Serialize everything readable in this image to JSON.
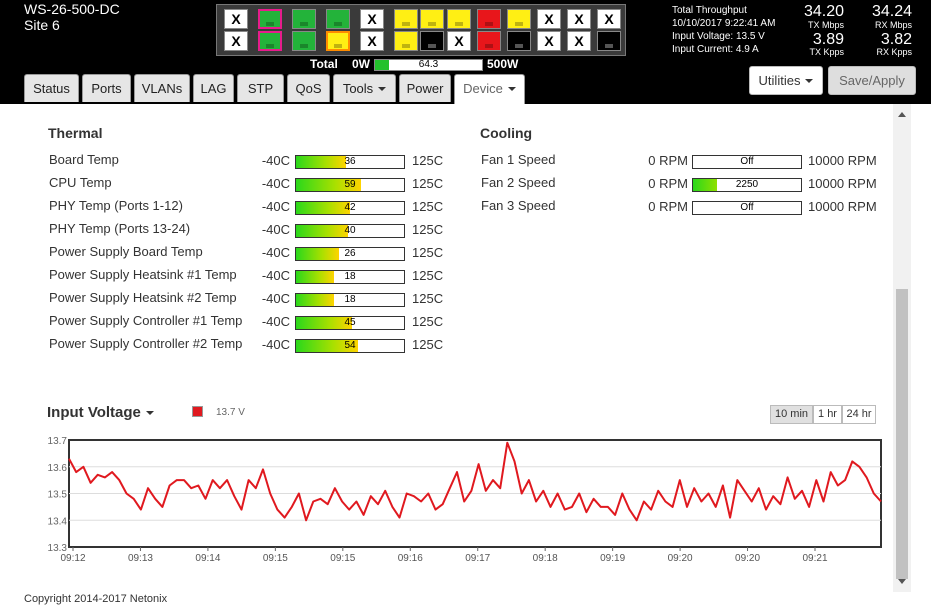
{
  "header": {
    "device_name": "WS-26-500-DC",
    "site_name": "Site 6",
    "total_label": "Total",
    "power_min": "0W",
    "power_max": "500W",
    "power_value": "64.3",
    "power_fraction": 0.129,
    "throughput_title": "Total Throughput",
    "datetime": "10/10/2017 9:22:41 AM",
    "input_voltage": "Input Voltage: 13.5 V",
    "input_current": "Input Current: 4.9 A",
    "tx_mbps": "34.20",
    "tx_mbps_label": "TX Mbps",
    "rx_mbps": "34.24",
    "rx_mbps_label": "RX Mbps",
    "tx_kpps": "3.89",
    "tx_kpps_label": "TX Kpps",
    "rx_kpps": "3.82",
    "rx_kpps_label": "RX Kpps"
  },
  "ports": {
    "top": [
      {
        "state": "x",
        "label": "X"
      },
      {
        "state": "green pink",
        "label": ""
      },
      {
        "state": "green",
        "label": ""
      },
      {
        "state": "green",
        "label": ""
      },
      {
        "state": "x",
        "label": "X"
      },
      {
        "state": "yellow",
        "label": ""
      },
      {
        "state": "yellow",
        "label": ""
      },
      {
        "state": "yellow",
        "label": ""
      },
      {
        "state": "red",
        "label": ""
      },
      {
        "state": "yellow",
        "label": ""
      },
      {
        "state": "x",
        "label": "X"
      },
      {
        "state": "x",
        "label": "X"
      },
      {
        "state": "x",
        "label": "X"
      }
    ],
    "bottom": [
      {
        "state": "x",
        "label": "X"
      },
      {
        "state": "green pink",
        "label": ""
      },
      {
        "state": "green",
        "label": ""
      },
      {
        "state": "yellow orange",
        "label": ""
      },
      {
        "state": "x",
        "label": "X"
      },
      {
        "state": "yellow",
        "label": ""
      },
      {
        "state": "black",
        "label": ""
      },
      {
        "state": "x",
        "label": "X"
      },
      {
        "state": "red",
        "label": ""
      },
      {
        "state": "black",
        "label": ""
      },
      {
        "state": "x",
        "label": "X"
      },
      {
        "state": "x",
        "label": "X"
      },
      {
        "state": "black",
        "label": ""
      }
    ]
  },
  "tabs": [
    {
      "label": "Status",
      "dropdown": false,
      "active": false
    },
    {
      "label": "Ports",
      "dropdown": false,
      "active": false
    },
    {
      "label": "VLANs",
      "dropdown": false,
      "active": false
    },
    {
      "label": "LAG",
      "dropdown": false,
      "active": false
    },
    {
      "label": "STP",
      "dropdown": false,
      "active": false
    },
    {
      "label": "QoS",
      "dropdown": false,
      "active": false
    },
    {
      "label": "Tools",
      "dropdown": true,
      "active": false
    },
    {
      "label": "Power",
      "dropdown": false,
      "active": false
    },
    {
      "label": "Device",
      "dropdown": true,
      "active": true
    }
  ],
  "buttons": {
    "utilities": "Utilities",
    "save_apply": "Save/Apply"
  },
  "thermal": {
    "title": "Thermal",
    "min": "-40C",
    "max": "125C",
    "scale_min": -40,
    "scale_max": 125,
    "items": [
      {
        "label": "Board Temp",
        "value": 36
      },
      {
        "label": "CPU Temp",
        "value": 59
      },
      {
        "label": "PHY Temp (Ports 1-12)",
        "value": 42
      },
      {
        "label": "PHY Temp (Ports 13-24)",
        "value": 40
      },
      {
        "label": "Power Supply Board Temp",
        "value": 26
      },
      {
        "label": "Power Supply Heatsink #1 Temp",
        "value": 18
      },
      {
        "label": "Power Supply Heatsink #2 Temp",
        "value": 18
      },
      {
        "label": "Power Supply Controller #1 Temp",
        "value": 45
      },
      {
        "label": "Power Supply Controller #2 Temp",
        "value": 54
      }
    ]
  },
  "cooling": {
    "title": "Cooling",
    "min": "0 RPM",
    "max": "10000 RPM",
    "scale_max": 10000,
    "items": [
      {
        "label": "Fan 1 Speed",
        "value": 0,
        "display": "Off"
      },
      {
        "label": "Fan 2 Speed",
        "value": 2250,
        "display": "2250"
      },
      {
        "label": "Fan 3 Speed",
        "value": 0,
        "display": "Off"
      }
    ]
  },
  "voltage_chart": {
    "title": "Input Voltage",
    "legend_value": "13.7 V",
    "ranges": [
      {
        "label": "10 min",
        "active": true
      },
      {
        "label": "1 hr",
        "active": false
      },
      {
        "label": "24 hr",
        "active": false
      }
    ]
  },
  "chart_data": {
    "type": "line",
    "title": "Input Voltage",
    "ylim": [
      13.3,
      13.7
    ],
    "yticks": [
      "13.7",
      "13.6",
      "13.5",
      "13.4",
      "13.3"
    ],
    "xticks": [
      "09:12",
      "09:13",
      "09:14",
      "09:15",
      "09:15",
      "09:16",
      "09:17",
      "09:18",
      "09:19",
      "09:20",
      "09:20",
      "09:21"
    ],
    "series": [
      {
        "name": "13.7 V",
        "color": "#e0191f",
        "values": [
          13.63,
          13.58,
          13.6,
          13.54,
          13.57,
          13.56,
          13.58,
          13.55,
          13.5,
          13.48,
          13.44,
          13.52,
          13.48,
          13.45,
          13.53,
          13.55,
          13.55,
          13.52,
          13.53,
          13.48,
          13.55,
          13.52,
          13.55,
          13.49,
          13.44,
          13.55,
          13.52,
          13.59,
          13.5,
          13.44,
          13.41,
          13.45,
          13.5,
          13.4,
          13.47,
          13.48,
          13.46,
          13.52,
          13.47,
          13.44,
          13.47,
          13.42,
          13.49,
          13.46,
          13.51,
          13.45,
          13.41,
          13.5,
          13.49,
          13.47,
          13.5,
          13.44,
          13.46,
          13.52,
          13.58,
          13.47,
          13.51,
          13.61,
          13.51,
          13.55,
          13.52,
          13.69,
          13.62,
          13.5,
          13.55,
          13.47,
          13.51,
          13.45,
          13.5,
          13.44,
          13.45,
          13.5,
          13.43,
          13.48,
          13.45,
          13.45,
          13.42,
          13.5,
          13.44,
          13.4,
          13.47,
          13.44,
          13.51,
          13.47,
          13.45,
          13.55,
          13.45,
          13.52,
          13.47,
          13.5,
          13.45,
          13.53,
          13.41,
          13.55,
          13.51,
          13.47,
          13.52,
          13.44,
          13.49,
          13.46,
          13.56,
          13.48,
          13.51,
          13.45,
          13.55,
          13.47,
          13.58,
          13.53,
          13.55,
          13.62,
          13.6,
          13.56,
          13.5,
          13.47
        ]
      }
    ],
    "grid": true
  },
  "footer": {
    "copyright": "Copyright 2014-2017 Netonix"
  }
}
